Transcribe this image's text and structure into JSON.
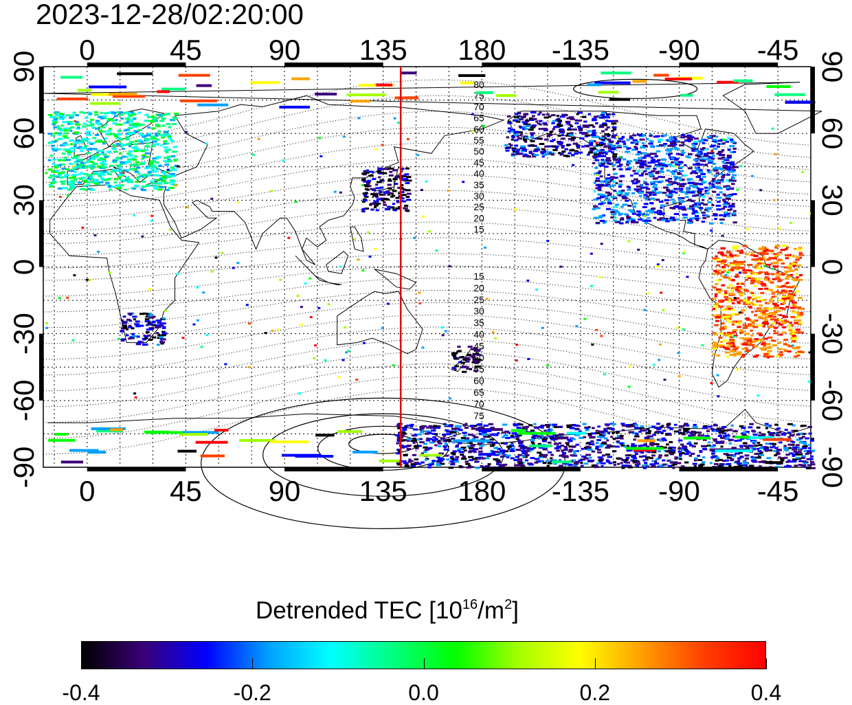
{
  "timestamp": "2023-12-28/02:20:00",
  "map": {
    "lon_ticks": [
      "0",
      "45",
      "90",
      "135",
      "180",
      "-135",
      "-90",
      "-45"
    ],
    "lat_ticks": [
      "90",
      "60",
      "30",
      "0",
      "-30",
      "-60",
      "-90"
    ],
    "lon_tick_values": [
      0,
      45,
      90,
      135,
      180,
      225,
      270,
      315
    ],
    "lat_tick_values": [
      90,
      60,
      30,
      0,
      -30,
      -60,
      -90
    ],
    "lon_range": [
      -20,
      330
    ],
    "lat_range": [
      -90,
      90
    ],
    "grid": true,
    "grid_step_deg": 15,
    "marker_longitude": 143,
    "marker_color": "#e00000",
    "contour_labels_north": [
      "80",
      "75",
      "70",
      "65",
      "60",
      "55",
      "50",
      "45",
      "40",
      "35",
      "30",
      "25",
      "20",
      "15"
    ],
    "contour_labels_south": [
      "15",
      "20",
      "25",
      "30",
      "35",
      "40",
      "45",
      "50",
      "55",
      "60",
      "65",
      "70",
      "75"
    ],
    "coverage_regions": [
      {
        "name": "Europe",
        "lon": [
          -18,
          40
        ],
        "lat": [
          35,
          70
        ],
        "mean_value": -0.08
      },
      {
        "name": "Japan",
        "lon": [
          125,
          146
        ],
        "lat": [
          25,
          45
        ],
        "mean_value": -0.35
      },
      {
        "name": "North America",
        "lon": [
          -130,
          -65
        ],
        "lat": [
          20,
          60
        ],
        "mean_value": -0.25
      },
      {
        "name": "South America",
        "lon": [
          -75,
          -35
        ],
        "lat": [
          -40,
          10
        ],
        "mean_value": 0.3
      },
      {
        "name": "Southern Africa",
        "lon": [
          15,
          35
        ],
        "lat": [
          -35,
          -20
        ],
        "mean_value": -0.3
      },
      {
        "name": "New Zealand",
        "lon": [
          166,
          178
        ],
        "lat": [
          -47,
          -35
        ],
        "mean_value": -0.38
      },
      {
        "name": "Alaska / Canada",
        "lon": [
          -170,
          -120
        ],
        "lat": [
          50,
          70
        ],
        "mean_value": -0.3
      },
      {
        "name": "Antarctica",
        "lon": [
          140,
          330
        ],
        "lat": [
          -90,
          -70
        ],
        "mean_value": -0.3
      }
    ]
  },
  "colorbar": {
    "title_main": "Detrended TEC  [10",
    "title_exp": "16",
    "title_unit": "/m",
    "title_exp2": "2",
    "title_close": "]",
    "min": -0.4,
    "max": 0.4,
    "tick_labels": [
      "-0.4",
      "-0.2",
      "0.0",
      "0.2",
      "0.4"
    ],
    "tick_values": [
      -0.4,
      -0.2,
      0.0,
      0.2,
      0.4
    ],
    "colors": [
      "#000000",
      "#3a0078",
      "#0000ff",
      "#00a0ff",
      "#00ffff",
      "#00ff80",
      "#00ff00",
      "#a0ff00",
      "#ffff00",
      "#ffa000",
      "#ff4000",
      "#ff0000"
    ]
  }
}
